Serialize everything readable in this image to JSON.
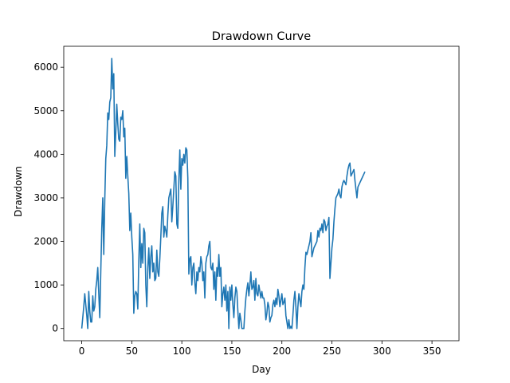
{
  "chart_data": {
    "type": "line",
    "title": "Drawdown Curve",
    "xlabel": "Day",
    "ylabel": "Drawdown",
    "xlim": [
      -18,
      377
    ],
    "ylim": [
      -280,
      6480
    ],
    "xticks": [
      0,
      50,
      100,
      150,
      200,
      250,
      300,
      350
    ],
    "yticks": [
      0,
      1000,
      2000,
      3000,
      4000,
      5000,
      6000
    ],
    "grid": false,
    "legend": "none",
    "series": [
      {
        "color": "#1f77b4",
        "points": [
          [
            0,
            0
          ],
          [
            2,
            500
          ],
          [
            3,
            800
          ],
          [
            5,
            300
          ],
          [
            6,
            0
          ],
          [
            7,
            850
          ],
          [
            8,
            400
          ],
          [
            9,
            150
          ],
          [
            10,
            150
          ],
          [
            11,
            750
          ],
          [
            12,
            400
          ],
          [
            13,
            500
          ],
          [
            14,
            900
          ],
          [
            15,
            1100
          ],
          [
            16,
            1400
          ],
          [
            17,
            800
          ],
          [
            18,
            250
          ],
          [
            19,
            1300
          ],
          [
            20,
            2300
          ],
          [
            21,
            3000
          ],
          [
            22,
            1700
          ],
          [
            23,
            2950
          ],
          [
            24,
            3900
          ],
          [
            25,
            4200
          ],
          [
            26,
            4950
          ],
          [
            27,
            4800
          ],
          [
            28,
            5200
          ],
          [
            29,
            5300
          ],
          [
            30,
            6200
          ],
          [
            31,
            5500
          ],
          [
            32,
            5850
          ],
          [
            33,
            3950
          ],
          [
            34,
            4500
          ],
          [
            35,
            5150
          ],
          [
            36,
            4700
          ],
          [
            37,
            4350
          ],
          [
            38,
            4300
          ],
          [
            39,
            4850
          ],
          [
            40,
            4800
          ],
          [
            41,
            5000
          ],
          [
            42,
            4400
          ],
          [
            43,
            4600
          ],
          [
            44,
            3450
          ],
          [
            45,
            3950
          ],
          [
            46,
            3500
          ],
          [
            47,
            3100
          ],
          [
            48,
            2250
          ],
          [
            49,
            2650
          ],
          [
            50,
            2100
          ],
          [
            51,
            1700
          ],
          [
            52,
            350
          ],
          [
            53,
            750
          ],
          [
            54,
            850
          ],
          [
            55,
            800
          ],
          [
            56,
            450
          ],
          [
            57,
            1550
          ],
          [
            58,
            2400
          ],
          [
            59,
            1400
          ],
          [
            60,
            1950
          ],
          [
            61,
            1500
          ],
          [
            62,
            2300
          ],
          [
            63,
            2200
          ],
          [
            64,
            1000
          ],
          [
            65,
            500
          ],
          [
            66,
            1400
          ],
          [
            67,
            1850
          ],
          [
            68,
            1150
          ],
          [
            69,
            1650
          ],
          [
            70,
            1900
          ],
          [
            71,
            1300
          ],
          [
            72,
            1500
          ],
          [
            73,
            1100
          ],
          [
            74,
            1150
          ],
          [
            75,
            1800
          ],
          [
            76,
            1300
          ],
          [
            77,
            1200
          ],
          [
            78,
            1600
          ],
          [
            79,
            2100
          ],
          [
            80,
            2650
          ],
          [
            81,
            2800
          ],
          [
            82,
            2100
          ],
          [
            83,
            2350
          ],
          [
            84,
            2250
          ],
          [
            85,
            2100
          ],
          [
            86,
            2600
          ],
          [
            87,
            3000
          ],
          [
            88,
            3100
          ],
          [
            89,
            3200
          ],
          [
            90,
            2450
          ],
          [
            91,
            2800
          ],
          [
            92,
            3200
          ],
          [
            93,
            3600
          ],
          [
            94,
            3500
          ],
          [
            95,
            2400
          ],
          [
            96,
            2300
          ],
          [
            97,
            3400
          ],
          [
            98,
            4100
          ],
          [
            99,
            3200
          ],
          [
            100,
            3900
          ],
          [
            101,
            3750
          ],
          [
            102,
            4000
          ],
          [
            103,
            3800
          ],
          [
            104,
            4150
          ],
          [
            105,
            4100
          ],
          [
            106,
            3450
          ],
          [
            107,
            1250
          ],
          [
            108,
            1600
          ],
          [
            109,
            1650
          ],
          [
            110,
            1000
          ],
          [
            111,
            1400
          ],
          [
            112,
            1500
          ],
          [
            113,
            1050
          ],
          [
            114,
            800
          ],
          [
            115,
            1300
          ],
          [
            116,
            1100
          ],
          [
            117,
            1400
          ],
          [
            118,
            1300
          ],
          [
            119,
            1650
          ],
          [
            120,
            1500
          ],
          [
            121,
            1100
          ],
          [
            122,
            1300
          ],
          [
            123,
            700
          ],
          [
            124,
            1500
          ],
          [
            125,
            1650
          ],
          [
            126,
            1700
          ],
          [
            127,
            1900
          ],
          [
            128,
            2000
          ],
          [
            129,
            1400
          ],
          [
            130,
            1350
          ],
          [
            131,
            1500
          ],
          [
            132,
            900
          ],
          [
            133,
            1300
          ],
          [
            134,
            650
          ],
          [
            135,
            1400
          ],
          [
            136,
            1200
          ],
          [
            137,
            1700
          ],
          [
            138,
            1200
          ],
          [
            139,
            1400
          ],
          [
            140,
            500
          ],
          [
            141,
            800
          ],
          [
            142,
            950
          ],
          [
            143,
            650
          ],
          [
            144,
            1000
          ],
          [
            145,
            400
          ],
          [
            146,
            850
          ],
          [
            147,
            0
          ],
          [
            148,
            950
          ],
          [
            149,
            650
          ],
          [
            150,
            1000
          ],
          [
            151,
            550
          ],
          [
            152,
            250
          ],
          [
            153,
            700
          ],
          [
            154,
            950
          ],
          [
            155,
            850
          ],
          [
            156,
            400
          ],
          [
            157,
            0
          ],
          [
            158,
            350
          ],
          [
            159,
            200
          ],
          [
            160,
            0
          ],
          [
            161,
            0
          ],
          [
            162,
            0
          ],
          [
            163,
            400
          ],
          [
            164,
            700
          ],
          [
            165,
            900
          ],
          [
            166,
            1050
          ],
          [
            167,
            750
          ],
          [
            168,
            1000
          ],
          [
            169,
            1300
          ],
          [
            170,
            900
          ],
          [
            171,
            950
          ],
          [
            172,
            1100
          ],
          [
            173,
            650
          ],
          [
            174,
            1150
          ],
          [
            175,
            800
          ],
          [
            176,
            750
          ],
          [
            177,
            1000
          ],
          [
            178,
            850
          ],
          [
            179,
            700
          ],
          [
            180,
            850
          ],
          [
            181,
            700
          ],
          [
            182,
            700
          ],
          [
            183,
            550
          ],
          [
            184,
            200
          ],
          [
            185,
            350
          ],
          [
            186,
            600
          ],
          [
            187,
            500
          ],
          [
            188,
            150
          ],
          [
            189,
            250
          ],
          [
            190,
            300
          ],
          [
            191,
            550
          ],
          [
            192,
            650
          ],
          [
            193,
            500
          ],
          [
            194,
            700
          ],
          [
            195,
            550
          ],
          [
            196,
            900
          ],
          [
            197,
            750
          ],
          [
            198,
            500
          ],
          [
            199,
            650
          ],
          [
            200,
            800
          ],
          [
            201,
            550
          ],
          [
            202,
            600
          ],
          [
            203,
            700
          ],
          [
            204,
            300
          ],
          [
            205,
            150
          ],
          [
            206,
            0
          ],
          [
            207,
            200
          ],
          [
            208,
            0
          ],
          [
            209,
            50
          ],
          [
            210,
            0
          ],
          [
            211,
            300
          ],
          [
            212,
            650
          ],
          [
            213,
            850
          ],
          [
            214,
            500
          ],
          [
            215,
            0
          ],
          [
            216,
            500
          ],
          [
            217,
            800
          ],
          [
            218,
            650
          ],
          [
            219,
            500
          ],
          [
            220,
            850
          ],
          [
            221,
            1000
          ],
          [
            222,
            900
          ],
          [
            223,
            1400
          ],
          [
            224,
            1750
          ],
          [
            225,
            1700
          ],
          [
            226,
            1800
          ],
          [
            227,
            1900
          ],
          [
            228,
            2000
          ],
          [
            229,
            2200
          ],
          [
            230,
            1650
          ],
          [
            231,
            1750
          ],
          [
            232,
            1850
          ],
          [
            233,
            1900
          ],
          [
            234,
            1950
          ],
          [
            235,
            2000
          ],
          [
            236,
            2250
          ],
          [
            237,
            2100
          ],
          [
            238,
            2300
          ],
          [
            239,
            2250
          ],
          [
            240,
            2400
          ],
          [
            241,
            2200
          ],
          [
            242,
            2500
          ],
          [
            243,
            2450
          ],
          [
            244,
            2250
          ],
          [
            245,
            2350
          ],
          [
            246,
            2400
          ],
          [
            247,
            2550
          ],
          [
            248,
            1150
          ],
          [
            249,
            1500
          ],
          [
            250,
            1850
          ],
          [
            251,
            2050
          ],
          [
            252,
            2450
          ],
          [
            253,
            2750
          ],
          [
            254,
            3000
          ],
          [
            255,
            3050
          ],
          [
            256,
            3100
          ],
          [
            257,
            3200
          ],
          [
            258,
            3050
          ],
          [
            259,
            3000
          ],
          [
            260,
            3250
          ],
          [
            261,
            3350
          ],
          [
            262,
            3400
          ],
          [
            263,
            3350
          ],
          [
            264,
            3300
          ],
          [
            265,
            3500
          ],
          [
            266,
            3650
          ],
          [
            267,
            3750
          ],
          [
            268,
            3800
          ],
          [
            269,
            3500
          ],
          [
            270,
            3550
          ],
          [
            271,
            3600
          ],
          [
            272,
            3650
          ],
          [
            273,
            3400
          ],
          [
            274,
            3200
          ],
          [
            275,
            3000
          ],
          [
            276,
            3250
          ],
          [
            277,
            3300
          ],
          [
            278,
            3350
          ],
          [
            279,
            3400
          ],
          [
            280,
            3450
          ],
          [
            281,
            3500
          ],
          [
            282,
            3550
          ],
          [
            283,
            3600
          ]
        ]
      }
    ]
  }
}
